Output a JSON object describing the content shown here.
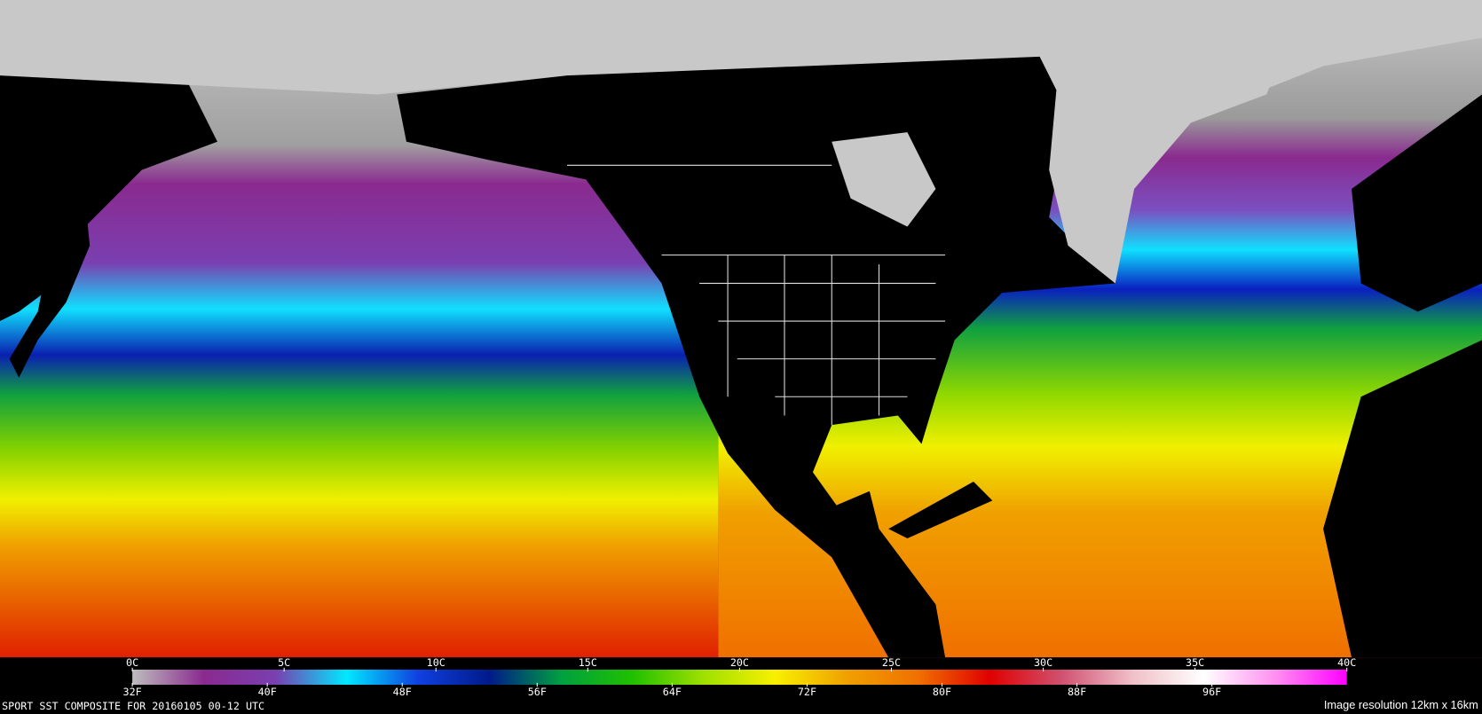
{
  "colorbar": {
    "clim": [
      0,
      40
    ],
    "flim": [
      32,
      104
    ],
    "colors": [
      "#bdbdbd",
      "#8a2a8f",
      "#7a3fb0",
      "#00e8ff",
      "#1040e0",
      "#001a8a",
      "#00a040",
      "#20c000",
      "#a0e000",
      "#f8f000",
      "#f0a000",
      "#f07000",
      "#e00000",
      "#d05070",
      "#f0c0c8",
      "#ffffff",
      "#ff90f0",
      "#ff00ff"
    ],
    "celsius_ticks": [
      {
        "value": 0,
        "label": "0C"
      },
      {
        "value": 5,
        "label": "5C"
      },
      {
        "value": 10,
        "label": "10C"
      },
      {
        "value": 15,
        "label": "15C"
      },
      {
        "value": 20,
        "label": "20C"
      },
      {
        "value": 25,
        "label": "25C"
      },
      {
        "value": 30,
        "label": "30C"
      },
      {
        "value": 35,
        "label": "35C"
      },
      {
        "value": 40,
        "label": "40C"
      }
    ],
    "fahrenheit_ticks": [
      {
        "value": 32,
        "label": "32F"
      },
      {
        "value": 40,
        "label": "40F"
      },
      {
        "value": 48,
        "label": "48F"
      },
      {
        "value": 56,
        "label": "56F"
      },
      {
        "value": 64,
        "label": "64F"
      },
      {
        "value": 72,
        "label": "72F"
      },
      {
        "value": 80,
        "label": "80F"
      },
      {
        "value": 88,
        "label": "88F"
      },
      {
        "value": 96,
        "label": "96F"
      }
    ]
  },
  "caption": "SPORT SST COMPOSITE FOR 20160105 00-12 UTC",
  "resolution": "Image resolution 12km x 16km"
}
